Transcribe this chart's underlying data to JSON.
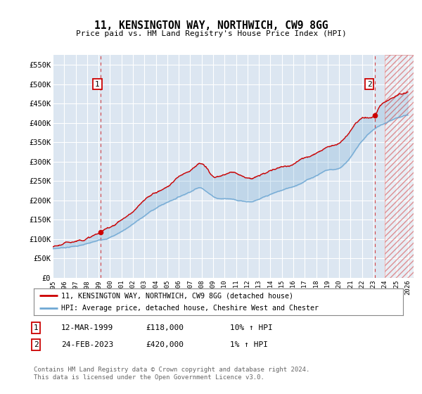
{
  "title": "11, KENSINGTON WAY, NORTHWICH, CW9 8GG",
  "subtitle": "Price paid vs. HM Land Registry's House Price Index (HPI)",
  "ylabel_ticks": [
    "£0",
    "£50K",
    "£100K",
    "£150K",
    "£200K",
    "£250K",
    "£300K",
    "£350K",
    "£400K",
    "£450K",
    "£500K",
    "£550K"
  ],
  "ytick_values": [
    0,
    50000,
    100000,
    150000,
    200000,
    250000,
    300000,
    350000,
    400000,
    450000,
    500000,
    550000
  ],
  "ylim": [
    0,
    575000
  ],
  "xlim_start": 1995.0,
  "xlim_end": 2026.5,
  "xtick_years": [
    1995,
    1996,
    1997,
    1998,
    1999,
    2000,
    2001,
    2002,
    2003,
    2004,
    2005,
    2006,
    2007,
    2008,
    2009,
    2010,
    2011,
    2012,
    2013,
    2014,
    2015,
    2016,
    2017,
    2018,
    2019,
    2020,
    2021,
    2022,
    2023,
    2024,
    2025,
    2026
  ],
  "background_color": "#ffffff",
  "plot_bg_color": "#dce6f1",
  "grid_color": "#ffffff",
  "hpi_line_color": "#6fa8d4",
  "price_line_color": "#cc0000",
  "sale1_x": 1999.19,
  "sale1_y": 118000,
  "sale2_x": 2023.14,
  "sale2_y": 420000,
  "legend_label_red": "11, KENSINGTON WAY, NORTHWICH, CW9 8GG (detached house)",
  "legend_label_blue": "HPI: Average price, detached house, Cheshire West and Chester",
  "annotation1": "1",
  "annotation2": "2",
  "note1_label": "1",
  "note1_date": "12-MAR-1999",
  "note1_price": "£118,000",
  "note1_hpi": "10% ↑ HPI",
  "note2_label": "2",
  "note2_date": "24-FEB-2023",
  "note2_price": "£420,000",
  "note2_hpi": "1% ↑ HPI",
  "footer": "Contains HM Land Registry data © Crown copyright and database right 2024.\nThis data is licensed under the Open Government Licence v3.0.",
  "hatch_color": "#cc0000",
  "vline_color": "#cc0000",
  "hpi_keypoints_x": [
    1995,
    1997,
    1999,
    2000,
    2001,
    2002,
    2003,
    2004,
    2005,
    2006,
    2007,
    2008,
    2009,
    2010,
    2011,
    2012,
    2013,
    2014,
    2015,
    2016,
    2017,
    2018,
    2019,
    2020,
    2021,
    2022,
    2023,
    2024,
    2025,
    2026
  ],
  "hpi_keypoints_y": [
    75000,
    83000,
    95000,
    105000,
    120000,
    140000,
    160000,
    180000,
    195000,
    210000,
    225000,
    235000,
    215000,
    210000,
    208000,
    205000,
    210000,
    220000,
    230000,
    240000,
    255000,
    270000,
    285000,
    290000,
    320000,
    360000,
    390000,
    405000,
    415000,
    420000
  ],
  "price_keypoints_x": [
    1995,
    1997,
    1999.19,
    2000,
    2001,
    2002,
    2003,
    2004,
    2005,
    2006,
    2007,
    2008,
    2009,
    2010,
    2011,
    2012,
    2013,
    2014,
    2015,
    2016,
    2017,
    2018,
    2019,
    2020,
    2021,
    2022,
    2023.14,
    2023.5,
    2024,
    2025,
    2026
  ],
  "price_keypoints_y": [
    80000,
    95000,
    118000,
    130000,
    150000,
    170000,
    195000,
    215000,
    230000,
    255000,
    275000,
    290000,
    255000,
    255000,
    260000,
    250000,
    255000,
    265000,
    275000,
    285000,
    300000,
    315000,
    335000,
    345000,
    380000,
    410000,
    420000,
    440000,
    455000,
    470000,
    480000
  ]
}
